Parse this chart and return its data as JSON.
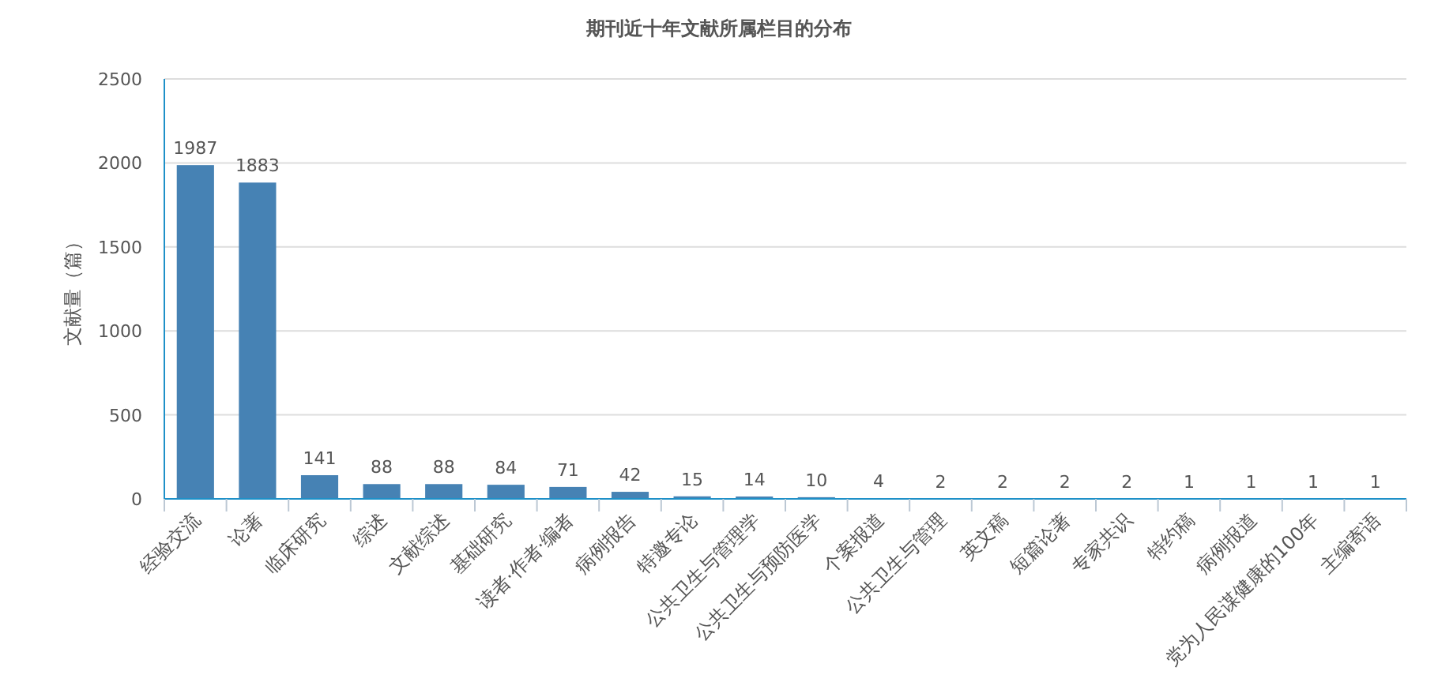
{
  "chart_data": {
    "type": "bar",
    "title": "期刊近十年文献所属栏目的分布",
    "ylabel": "文献量（篇）",
    "categories": [
      "经验交流",
      "论著",
      "临床研究",
      "综述",
      "文献综述",
      "基础研究",
      "读者·作者·编者",
      "病例报告",
      "特邀专论",
      "公共卫生与管理学",
      "公共卫生与预防医学",
      "个案报道",
      "公共卫生与管理",
      "英文稿",
      "短篇论著",
      "专家共识",
      "特约稿",
      "病例报道",
      "党为人民谋健康的100年",
      "主编寄语"
    ],
    "values": [
      1987,
      1883,
      141,
      88,
      88,
      84,
      71,
      42,
      15,
      14,
      10,
      4,
      2,
      2,
      2,
      2,
      1,
      1,
      1,
      1
    ],
    "color": "#4682b4",
    "ylim": [
      0,
      2500
    ],
    "yticks": [
      0,
      500,
      1000,
      1500,
      2000,
      2500
    ],
    "grid": "y",
    "data_labels": true
  }
}
